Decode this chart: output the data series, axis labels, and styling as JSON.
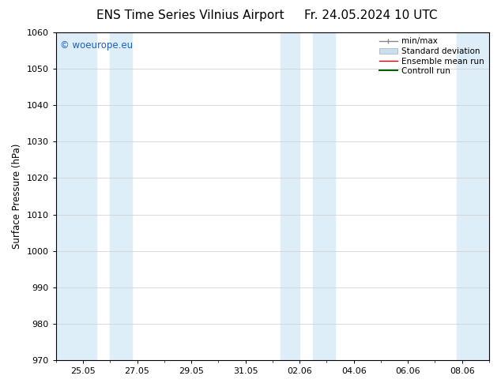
{
  "title_left": "ENS Time Series Vilnius Airport",
  "title_right": "Fr. 24.05.2024 10 UTC",
  "ylabel": "Surface Pressure (hPa)",
  "ylim": [
    970,
    1060
  ],
  "yticks": [
    970,
    980,
    990,
    1000,
    1010,
    1020,
    1030,
    1040,
    1050,
    1060
  ],
  "xtick_labels": [
    "25.05",
    "27.05",
    "29.05",
    "31.05",
    "02.06",
    "04.06",
    "06.06",
    "08.06"
  ],
  "xlim": [
    0,
    16
  ],
  "xtick_positions": [
    1,
    3,
    5,
    7,
    9,
    11,
    13,
    15
  ],
  "shaded_bands": [
    {
      "x_start": 0.0,
      "x_end": 1.5,
      "color": "#ddeef8"
    },
    {
      "x_start": 2.0,
      "x_end": 2.8,
      "color": "#ddeef8"
    },
    {
      "x_start": 8.3,
      "x_end": 9.0,
      "color": "#ddeef8"
    },
    {
      "x_start": 9.5,
      "x_end": 10.3,
      "color": "#ddeef8"
    },
    {
      "x_start": 14.8,
      "x_end": 16.0,
      "color": "#ddeef8"
    }
  ],
  "watermark": "© woeurope.eu",
  "watermark_color": "#1a5fcc",
  "legend_labels": [
    "min/max",
    "Standard deviation",
    "Ensemble mean run",
    "Controll run"
  ],
  "background_color": "#ffffff",
  "plot_bg": "#ffffff",
  "title_fontsize": 11,
  "axis_fontsize": 8.5,
  "tick_fontsize": 8,
  "legend_fontsize": 7.5,
  "watermark_fontsize": 8.5
}
